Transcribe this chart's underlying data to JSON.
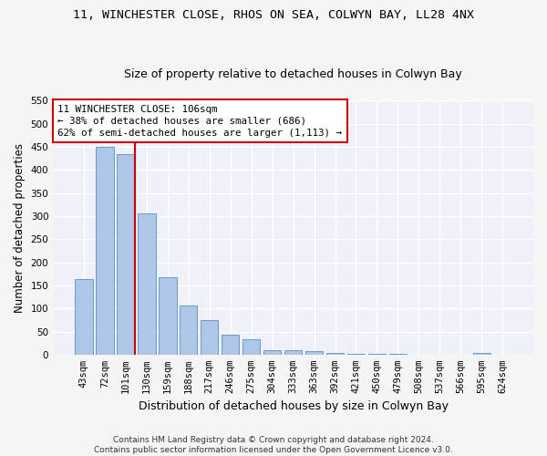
{
  "title1": "11, WINCHESTER CLOSE, RHOS ON SEA, COLWYN BAY, LL28 4NX",
  "title2": "Size of property relative to detached houses in Colwyn Bay",
  "xlabel": "Distribution of detached houses by size in Colwyn Bay",
  "ylabel": "Number of detached properties",
  "footer1": "Contains HM Land Registry data © Crown copyright and database right 2024.",
  "footer2": "Contains public sector information licensed under the Open Government Licence v3.0.",
  "categories": [
    "43sqm",
    "72sqm",
    "101sqm",
    "130sqm",
    "159sqm",
    "188sqm",
    "217sqm",
    "246sqm",
    "275sqm",
    "304sqm",
    "333sqm",
    "363sqm",
    "392sqm",
    "421sqm",
    "450sqm",
    "479sqm",
    "508sqm",
    "537sqm",
    "566sqm",
    "595sqm",
    "624sqm"
  ],
  "values": [
    163,
    450,
    435,
    305,
    167,
    106,
    74,
    44,
    33,
    10,
    10,
    7,
    3,
    1,
    1,
    1,
    0,
    0,
    0,
    4,
    0
  ],
  "bar_color": "#aec6e8",
  "bar_edge_color": "#5a8fc0",
  "vline_color": "#cc0000",
  "vline_x": 2.425,
  "annotation_text": "11 WINCHESTER CLOSE: 106sqm\n← 38% of detached houses are smaller (686)\n62% of semi-detached houses are larger (1,113) →",
  "annotation_box_color": "#ffffff",
  "annotation_box_edge": "#cc0000",
  "ylim": [
    0,
    550
  ],
  "yticks": [
    0,
    50,
    100,
    150,
    200,
    250,
    300,
    350,
    400,
    450,
    500,
    550
  ],
  "bg_color": "#eef2f8",
  "grid_color": "#ffffff",
  "title1_fontsize": 9.5,
  "title2_fontsize": 9,
  "axis_label_fontsize": 8.5,
  "tick_fontsize": 7.5,
  "annotation_fontsize": 7.8,
  "footer_fontsize": 6.5
}
